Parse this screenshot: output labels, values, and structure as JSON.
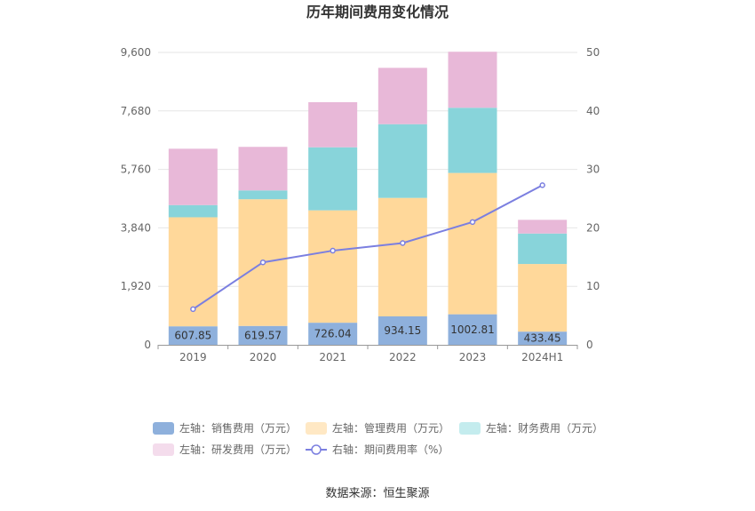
{
  "chart_data": {
    "type": "bar",
    "title": "历年期间费用变化情况",
    "source": "数据来源：恒生聚源",
    "categories": [
      "2019",
      "2020",
      "2021",
      "2022",
      "2023",
      "2024H1"
    ],
    "y_left": {
      "ylim": [
        0,
        9600
      ],
      "ticks": [
        "0",
        "1,920",
        "3,840",
        "5,760",
        "7,680",
        "9,600"
      ],
      "tick_values": [
        0,
        1920,
        3840,
        5760,
        7680,
        9600
      ]
    },
    "y_right": {
      "ylim": [
        0,
        50
      ],
      "ticks": [
        "0",
        "10",
        "20",
        "30",
        "40",
        "50"
      ],
      "tick_values": [
        0,
        10,
        20,
        30,
        40,
        50
      ]
    },
    "grid": true,
    "legend_position": "bottom",
    "series": [
      {
        "name": "左轴：销售费用（万元）",
        "type": "bar",
        "axis": "left",
        "color": "#8eb0dc",
        "values": [
          607.85,
          619.57,
          726.04,
          934.15,
          1002.81,
          433.45
        ],
        "labels": [
          "607.85",
          "619.57",
          "726.04",
          "934.15",
          "1002.81",
          "433.45"
        ]
      },
      {
        "name": "左轴：管理费用（万元）",
        "type": "bar",
        "axis": "left",
        "color": "#ffd89a",
        "values": [
          3580,
          4160,
          3690,
          3890,
          4640,
          2220
        ]
      },
      {
        "name": "左轴：财务费用（万元）",
        "type": "bar",
        "axis": "left",
        "color": "#88d4da",
        "values": [
          400,
          290,
          2070,
          2420,
          2140,
          1000
        ]
      },
      {
        "name": "左轴：研发费用（万元）",
        "type": "bar",
        "axis": "left",
        "color": "#e8b8d8",
        "values": [
          1850,
          1430,
          1480,
          1850,
          1840,
          450
        ]
      },
      {
        "name": "右轴：期间费用率（%）",
        "type": "line",
        "axis": "right",
        "color": "#7b7fe0",
        "values": [
          6.1,
          14.1,
          16.1,
          17.4,
          21.0,
          27.3
        ]
      }
    ]
  },
  "legend_colors": [
    "#8eb0dc",
    "#ffe8c4",
    "#c4ecee",
    "#f4dcec",
    "#7b7fe0"
  ]
}
